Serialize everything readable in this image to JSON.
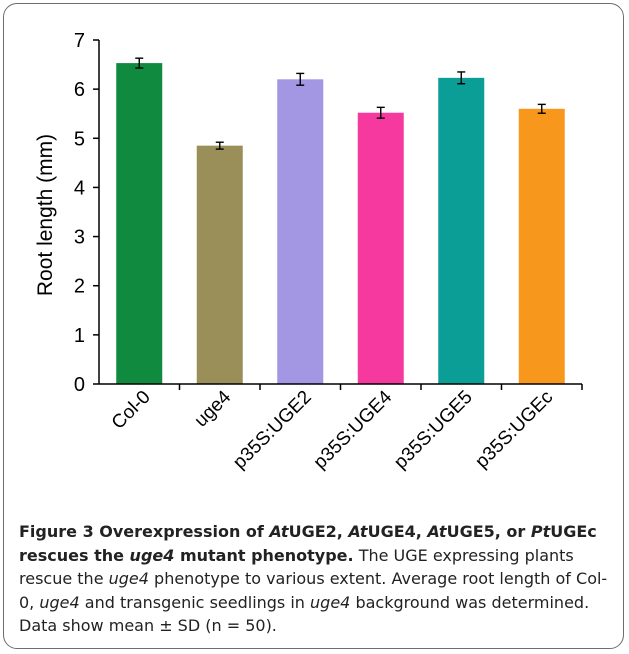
{
  "chart_data": {
    "type": "bar",
    "categories": [
      "Col-0",
      "uge4",
      "p35S:UGE2",
      "p35S:UGE4",
      "p35S:UGE5",
      "p35S:UGEc"
    ],
    "values": [
      6.53,
      4.85,
      6.2,
      5.52,
      6.23,
      5.6
    ],
    "errors": [
      0.1,
      0.07,
      0.12,
      0.11,
      0.12,
      0.09
    ],
    "colors": [
      "#0f8a3e",
      "#9a8f59",
      "#a396e2",
      "#f5399f",
      "#0a9e97",
      "#f7971c"
    ],
    "ylabel": "Root length (mm)",
    "xlabel": "",
    "ylim": [
      0,
      7
    ],
    "yticks": [
      "0",
      "1",
      "2",
      "3",
      "4",
      "5",
      "6",
      "7"
    ],
    "grid": false,
    "legend": "none"
  },
  "caption": {
    "fig_label": "Figure 3",
    "title_parts": [
      " Overexpression of ",
      "At",
      "UGE2, ",
      "At",
      "UGE4, ",
      "At",
      "UGE5, or ",
      "Pt",
      "UGEc rescues the ",
      "uge4",
      " mutant phenotype."
    ],
    "body_parts": [
      " The UGE expressing plants rescue the ",
      "uge4",
      " phenotype to various extent. Average root length of Col-0, ",
      "uge4",
      " and transgenic seedlings in ",
      "uge4",
      " background was determined. Data show mean ± SD (n = 50)."
    ]
  }
}
